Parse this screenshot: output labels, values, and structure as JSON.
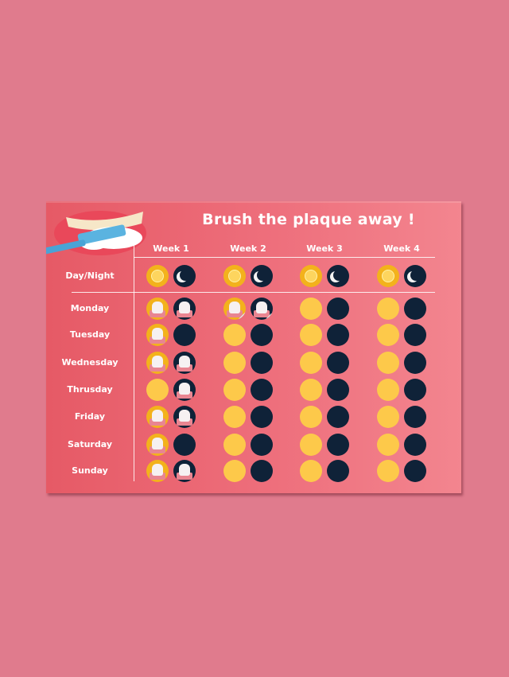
{
  "title": "Brush the plaque away !",
  "weeks": [
    "Week 1",
    "Week 2",
    "Week 3",
    "Week 4"
  ],
  "header_row_label": "Day/Night",
  "days": [
    "Monday",
    "Tuesday",
    "Wednesday",
    "Thrusday",
    "Friday",
    "Saturday",
    "Sunday"
  ],
  "icons": {
    "day": "sun-icon",
    "night": "moon-icon",
    "sticker": "tooth-sticker-icon",
    "illustration": "toothbrush-mouth-illustration"
  },
  "colors": {
    "background": "#e07b8d",
    "board": "#e65a66",
    "sun": "#fdc94a",
    "moon": "#0f2238"
  },
  "stickers": {
    "Week 1": {
      "day": [
        true,
        true,
        true,
        false,
        true,
        true,
        true
      ],
      "night": [
        true,
        false,
        true,
        true,
        true,
        false,
        true
      ]
    },
    "Week 2": {
      "day": [
        true,
        false,
        false,
        false,
        false,
        false,
        false
      ],
      "night": [
        true,
        false,
        false,
        false,
        false,
        false,
        false
      ]
    },
    "Week 3": {
      "day": [
        false,
        false,
        false,
        false,
        false,
        false,
        false
      ],
      "night": [
        false,
        false,
        false,
        false,
        false,
        false,
        false
      ]
    },
    "Week 4": {
      "day": [
        false,
        false,
        false,
        false,
        false,
        false,
        false
      ],
      "night": [
        false,
        false,
        false,
        false,
        false,
        false,
        false
      ]
    }
  }
}
